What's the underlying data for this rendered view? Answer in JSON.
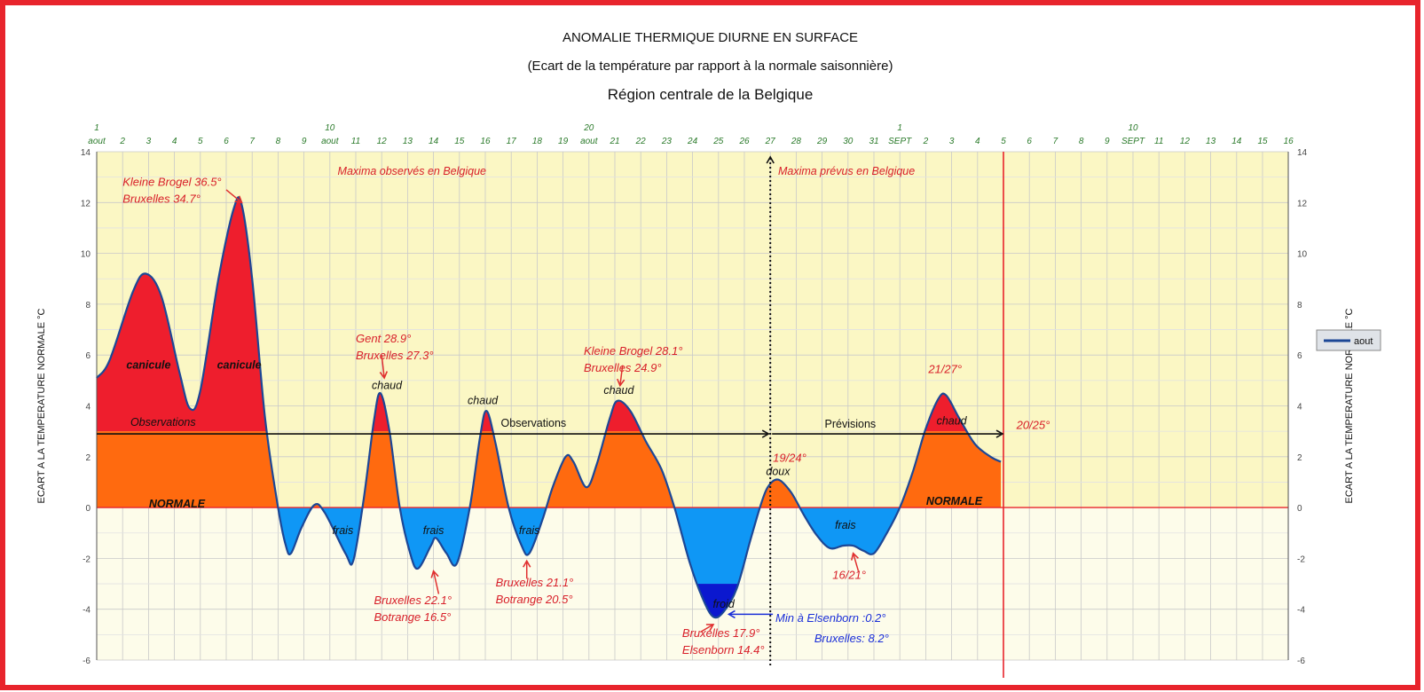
{
  "chart_data": {
    "type": "area",
    "title": "ANOMALIE THERMIQUE DIURNE EN SURFACE",
    "subtitle": "(Ecart de la température par rapport à la normale saisonnière)",
    "region": "Région centrale de la Belgique",
    "ylabel": "ECART A LA TEMPERATURE NORMALE °C",
    "ylabel_right": "ECART A LA TEMPERATURE NORMALE °C",
    "ylim": [
      -6,
      14
    ],
    "yticks": [
      -6,
      -4,
      -2,
      0,
      2,
      4,
      6,
      8,
      10,
      12,
      14
    ],
    "xlim": [
      0.7,
      47
    ],
    "x_numbers": [
      {
        "x": 1,
        "label": "1"
      },
      {
        "x": 10,
        "label": "10"
      },
      {
        "x": 20,
        "label": "20"
      },
      {
        "x": 32,
        "label": "1"
      },
      {
        "x": 41,
        "label": "10"
      }
    ],
    "x_days": [
      {
        "x": 1,
        "label": "aout"
      },
      {
        "x": 2,
        "label": "2"
      },
      {
        "x": 3,
        "label": "3"
      },
      {
        "x": 4,
        "label": "4"
      },
      {
        "x": 5,
        "label": "5"
      },
      {
        "x": 6,
        "label": "6"
      },
      {
        "x": 7,
        "label": "7"
      },
      {
        "x": 8,
        "label": "8"
      },
      {
        "x": 9,
        "label": "9"
      },
      {
        "x": 10,
        "label": "aout"
      },
      {
        "x": 11,
        "label": "11"
      },
      {
        "x": 12,
        "label": "12"
      },
      {
        "x": 13,
        "label": "13"
      },
      {
        "x": 14,
        "label": "14"
      },
      {
        "x": 15,
        "label": "15"
      },
      {
        "x": 16,
        "label": "16"
      },
      {
        "x": 17,
        "label": "17"
      },
      {
        "x": 18,
        "label": "18"
      },
      {
        "x": 19,
        "label": "19"
      },
      {
        "x": 20,
        "label": "aout"
      },
      {
        "x": 21,
        "label": "21"
      },
      {
        "x": 22,
        "label": "22"
      },
      {
        "x": 23,
        "label": "23"
      },
      {
        "x": 24,
        "label": "24"
      },
      {
        "x": 25,
        "label": "25"
      },
      {
        "x": 26,
        "label": "26"
      },
      {
        "x": 27,
        "label": "27"
      },
      {
        "x": 28,
        "label": "28"
      },
      {
        "x": 29,
        "label": "29"
      },
      {
        "x": 30,
        "label": "30"
      },
      {
        "x": 31,
        "label": "31"
      },
      {
        "x": 32,
        "label": "SEPT"
      },
      {
        "x": 33,
        "label": "2"
      },
      {
        "x": 34,
        "label": "3"
      },
      {
        "x": 35,
        "label": "4"
      },
      {
        "x": 36,
        "label": "5"
      },
      {
        "x": 37,
        "label": "6"
      },
      {
        "x": 38,
        "label": "7"
      },
      {
        "x": 39,
        "label": "8"
      },
      {
        "x": 40,
        "label": "9"
      },
      {
        "x": 41,
        "label": "SEPT"
      },
      {
        "x": 42,
        "label": "11"
      },
      {
        "x": 43,
        "label": "12"
      },
      {
        "x": 44,
        "label": "13"
      },
      {
        "x": 45,
        "label": "14"
      },
      {
        "x": 46,
        "label": "15"
      },
      {
        "x": 47,
        "label": "16"
      }
    ],
    "series": [
      {
        "name": "aout",
        "points": [
          [
            0.7,
            5.1
          ],
          [
            1.5,
            5.8
          ],
          [
            2.4,
            8.5
          ],
          [
            2.9,
            9.2
          ],
          [
            3.5,
            8.3
          ],
          [
            4.2,
            5.3
          ],
          [
            4.6,
            3.9
          ],
          [
            5.0,
            4.6
          ],
          [
            5.7,
            9.0
          ],
          [
            6.3,
            11.8
          ],
          [
            6.6,
            11.9
          ],
          [
            7.0,
            9.0
          ],
          [
            7.5,
            3.5
          ],
          [
            8.0,
            0.0
          ],
          [
            8.3,
            -1.5
          ],
          [
            8.5,
            -1.8
          ],
          [
            8.9,
            -0.8
          ],
          [
            9.4,
            0.1
          ],
          [
            9.8,
            -0.2
          ],
          [
            10.6,
            -1.8
          ],
          [
            10.9,
            -2.1
          ],
          [
            11.3,
            0.3
          ],
          [
            11.7,
            3.4
          ],
          [
            11.95,
            4.5
          ],
          [
            12.3,
            3.0
          ],
          [
            12.7,
            0.0
          ],
          [
            13.1,
            -1.8
          ],
          [
            13.4,
            -2.4
          ],
          [
            13.9,
            -1.5
          ],
          [
            14.1,
            -1.2
          ],
          [
            14.5,
            -1.8
          ],
          [
            14.9,
            -2.2
          ],
          [
            15.4,
            0.0
          ],
          [
            15.8,
            2.8
          ],
          [
            16.05,
            3.8
          ],
          [
            16.4,
            2.5
          ],
          [
            16.9,
            0.0
          ],
          [
            17.4,
            -1.5
          ],
          [
            17.7,
            -1.8
          ],
          [
            18.2,
            -0.5
          ],
          [
            18.6,
            0.8
          ],
          [
            19.1,
            2.0
          ],
          [
            19.4,
            1.8
          ],
          [
            19.9,
            0.8
          ],
          [
            20.3,
            1.7
          ],
          [
            20.8,
            3.5
          ],
          [
            21.1,
            4.2
          ],
          [
            21.6,
            3.8
          ],
          [
            22.2,
            2.6
          ],
          [
            22.8,
            1.5
          ],
          [
            23.3,
            0.0
          ],
          [
            23.9,
            -2.2
          ],
          [
            24.4,
            -3.6
          ],
          [
            24.8,
            -4.3
          ],
          [
            25.2,
            -4.1
          ],
          [
            25.7,
            -3.2
          ],
          [
            26.2,
            -1.4
          ],
          [
            26.6,
            0.0
          ],
          [
            26.9,
            0.8
          ],
          [
            27.3,
            1.1
          ],
          [
            27.8,
            0.6
          ],
          [
            28.3,
            -0.3
          ],
          [
            28.8,
            -1.1
          ],
          [
            29.3,
            -1.6
          ],
          [
            29.8,
            -1.5
          ],
          [
            30.2,
            -1.5
          ],
          [
            30.6,
            -1.7
          ],
          [
            31.0,
            -1.8
          ],
          [
            31.5,
            -1.0
          ],
          [
            32.0,
            0.0
          ],
          [
            32.5,
            1.4
          ],
          [
            33.0,
            3.1
          ],
          [
            33.5,
            4.3
          ],
          [
            33.8,
            4.4
          ],
          [
            34.3,
            3.5
          ],
          [
            34.9,
            2.5
          ],
          [
            35.5,
            2.0
          ],
          [
            35.9,
            1.8
          ]
        ]
      }
    ],
    "zones": [
      {
        "label": "canicule",
        "x": 3.0,
        "y": 5.6
      },
      {
        "label": "canicule",
        "x": 6.5,
        "y": 5.6
      },
      {
        "label": "NORMALE",
        "x": 4.1,
        "y": 0.0
      },
      {
        "label": "NORMALE",
        "x": 34.1,
        "y": 0.1
      },
      {
        "label": "frais",
        "x": 10.5,
        "y": -0.9
      },
      {
        "label": "frais",
        "x": 14.0,
        "y": -0.9
      },
      {
        "label": "frais",
        "x": 17.7,
        "y": -0.9
      },
      {
        "label": "frais",
        "x": 29.9,
        "y": -0.7
      },
      {
        "label": "froid",
        "x": 25.2,
        "y": -3.8
      }
    ],
    "point_labels": [
      {
        "label": "chaud",
        "x": 12.2,
        "y": 4.6
      },
      {
        "label": "chaud",
        "x": 15.9,
        "y": 4.0
      },
      {
        "label": "chaud",
        "x": 21.15,
        "y": 4.4
      },
      {
        "label": "chaud",
        "x": 34.0,
        "y": 3.2
      },
      {
        "label": "doux",
        "x": 27.3,
        "y": 1.2
      }
    ],
    "arrows_labels": {
      "observations_1": "Observations",
      "observations_2": "Observations",
      "previsions": "Prévisions",
      "max_observed": "Maxima observés en Belgique",
      "max_forecast": "Maxima prévus en Belgique"
    },
    "annotations": [
      {
        "lines": [
          "Kleine Brogel 36.5°",
          "Bruxelles 34.7°"
        ],
        "x": 2.0,
        "y": 12.65
      },
      {
        "lines": [
          "Gent 28.9°",
          "Bruxelles 27.3°"
        ],
        "x": 11.0,
        "y": 6.5
      },
      {
        "lines": [
          "Kleine Brogel 28.1°",
          "Bruxelles 24.9°"
        ],
        "x": 19.8,
        "y": 6.0
      },
      {
        "lines": [
          "21/27°"
        ],
        "x": 33.1,
        "y": 5.3
      },
      {
        "lines": [
          "20/25°"
        ],
        "x": 36.5,
        "y": 3.1
      },
      {
        "lines": [
          "19/24°"
        ],
        "x": 27.1,
        "y": 1.8
      },
      {
        "lines": [
          "Bruxelles 22.1°",
          "Botrange 16.5°"
        ],
        "x": 11.7,
        "y": -3.8
      },
      {
        "lines": [
          "Bruxelles 21.1°",
          "Botrange 20.5°"
        ],
        "x": 16.4,
        "y": -3.1
      },
      {
        "lines": [
          "16/21°"
        ],
        "x": 29.4,
        "y": -2.8
      },
      {
        "lines": [
          "Bruxelles 17.9°",
          "Elsenborn 14.4°"
        ],
        "x": 23.6,
        "y": -5.1
      }
    ],
    "annotations_blue": [
      {
        "lines": [
          "Min à Elsenborn :0.2°"
        ],
        "x": 27.2,
        "y": -4.5
      },
      {
        "lines": [
          "Bruxelles: 8.2°"
        ],
        "x": 28.7,
        "y": -5.3
      }
    ],
    "legend": {
      "label": "aout",
      "placement": "right"
    },
    "grid": true,
    "dotted_vline_x": 27,
    "red_vline_x": 36,
    "arrow_y": 2.9
  }
}
